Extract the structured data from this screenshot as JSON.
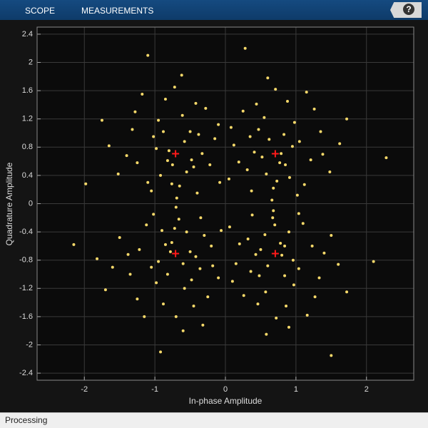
{
  "toolbar": {
    "tabs": [
      "SCOPE",
      "MEASUREMENTS"
    ],
    "help": "?"
  },
  "chart_data": {
    "type": "scatter",
    "xlabel": "In-phase Amplitude",
    "ylabel": "Quadrature Amplitude",
    "xlim": [
      -2.67,
      2.67
    ],
    "ylim": [
      -2.5,
      2.5
    ],
    "xticks": [
      -2,
      -1,
      0,
      1,
      2
    ],
    "yticks": [
      -2.4,
      -2,
      -1.6,
      -1.2,
      -0.8,
      -0.4,
      0,
      0.4,
      0.8,
      1.2,
      1.6,
      2,
      2.4
    ],
    "grid": true,
    "series": [
      {
        "color": "#f7d96a",
        "marker": "dot",
        "x": [
          0.62,
          0.85,
          0.41,
          1.05,
          0.73,
          0.55,
          0.98,
          0.31,
          1.21,
          0.66,
          0.12,
          0.88,
          1.35,
          0.47,
          0.79,
          0.25,
          1.12,
          0.58,
          0.95,
          0.37,
          1.48,
          0.71,
          0.19,
          1.02,
          0.52,
          0.83,
          1.26,
          0.44,
          0.68,
          1.62,
          0.08,
          0.91,
          0.35,
          1.15,
          0.6,
          1.72,
          0.05,
          0.77,
          1.38,
          0.28,
          -0.58,
          -0.82,
          -0.45,
          -1.02,
          -0.76,
          -0.61,
          -0.95,
          -0.33,
          -1.25,
          -0.69,
          -0.15,
          -0.85,
          -1.32,
          -0.5,
          -0.8,
          -0.28,
          -1.1,
          -0.55,
          -0.98,
          -0.4,
          -1.52,
          -0.72,
          -0.22,
          -1.05,
          -0.48,
          -0.88,
          -1.28,
          -0.42,
          -0.65,
          -1.65,
          -0.1,
          -0.92,
          -0.38,
          -1.18,
          -0.62,
          -1.75,
          -0.08,
          -0.75,
          -1.4,
          -1.1,
          -0.6,
          -0.85,
          -0.42,
          -1.05,
          -0.72,
          -0.58,
          -0.98,
          -0.3,
          -1.22,
          -0.7,
          -0.18,
          -0.88,
          -1.35,
          -0.48,
          -0.78,
          -0.25,
          -1.12,
          -0.55,
          -0.95,
          -0.35,
          -1.5,
          -0.7,
          -0.2,
          -1.02,
          -0.5,
          -0.82,
          -1.25,
          -0.45,
          -0.66,
          -1.6,
          -0.1,
          -0.9,
          -0.36,
          -1.15,
          -0.6,
          -1.7,
          -0.06,
          -0.76,
          -1.38,
          -0.32,
          0.6,
          0.84,
          0.43,
          1.04,
          0.7,
          0.57,
          0.97,
          0.32,
          1.23,
          0.68,
          0.15,
          0.86,
          1.33,
          0.48,
          0.8,
          0.26,
          1.1,
          0.56,
          0.96,
          0.38,
          1.5,
          0.72,
          0.2,
          1.04,
          0.5,
          0.84,
          1.27,
          0.46,
          0.67,
          1.6,
          0.1,
          0.9,
          0.36,
          1.16,
          0.58,
          1.72,
          0.06,
          0.78,
          1.4,
          0.9,
          -2.15,
          2.28,
          -1.98,
          2.1,
          -0.92,
          1.5,
          -1.82
        ],
        "values": [
          0.91,
          0.55,
          0.73,
          0.88,
          0.32,
          1.22,
          1.15,
          0.48,
          0.62,
          0.05,
          0.83,
          1.45,
          1.02,
          1.05,
          0.71,
          1.31,
          0.27,
          0.42,
          0.81,
          0.18,
          0.45,
          1.62,
          0.59,
          0.12,
          0.66,
          0.98,
          1.34,
          1.41,
          0.22,
          0.85,
          1.08,
          0.37,
          0.95,
          1.58,
          1.78,
          1.2,
          0.35,
          0.58,
          0.7,
          2.2,
          0.88,
          0.61,
          0.52,
          0.95,
          0.28,
          1.25,
          1.18,
          0.71,
          0.58,
          0.08,
          0.92,
          1.48,
          1.05,
          1.02,
          0.75,
          1.35,
          0.3,
          0.45,
          0.78,
          0.15,
          0.42,
          1.65,
          0.55,
          0.18,
          0.62,
          1.02,
          1.3,
          1.42,
          0.25,
          0.82,
          1.12,
          0.4,
          0.98,
          1.55,
          1.82,
          1.18,
          0.3,
          0.55,
          0.68,
          2.1,
          -0.85,
          -0.58,
          -0.75,
          -0.9,
          -0.35,
          -1.2,
          -1.12,
          -0.45,
          -0.65,
          -0.05,
          -0.88,
          -1.42,
          -1.0,
          -1.08,
          -0.68,
          -1.32,
          -0.3,
          -0.4,
          -0.82,
          -0.2,
          -0.48,
          -1.6,
          -0.6,
          -0.15,
          -0.68,
          -1.0,
          -1.35,
          -1.45,
          -0.22,
          -0.9,
          -1.05,
          -0.38,
          -0.92,
          -1.6,
          -1.8,
          -1.22,
          -0.38,
          -0.55,
          -0.72,
          -1.72,
          -0.88,
          -0.6,
          -0.72,
          -0.92,
          -0.3,
          -1.25,
          -1.15,
          -0.5,
          -0.6,
          -0.1,
          -0.85,
          -1.45,
          -1.05,
          -1.02,
          -0.73,
          -1.3,
          -0.28,
          -0.44,
          -0.8,
          -0.16,
          -0.45,
          -1.62,
          -0.57,
          -0.14,
          -0.65,
          -1.02,
          -1.32,
          -1.42,
          -0.2,
          -0.86,
          -1.1,
          -0.4,
          -0.96,
          -1.58,
          -1.85,
          -1.25,
          -0.33,
          -0.56,
          -0.7,
          -1.75,
          -0.58,
          0.65,
          0.28,
          -0.82,
          -2.1,
          -2.15,
          -0.78
        ]
      },
      {
        "color": "#ff1a1a",
        "marker": "plus",
        "x": [
          0.707,
          -0.707,
          -0.707,
          0.707
        ],
        "values": [
          0.707,
          0.707,
          -0.707,
          -0.707
        ]
      }
    ]
  },
  "status_bar": {
    "text": "Processing"
  }
}
